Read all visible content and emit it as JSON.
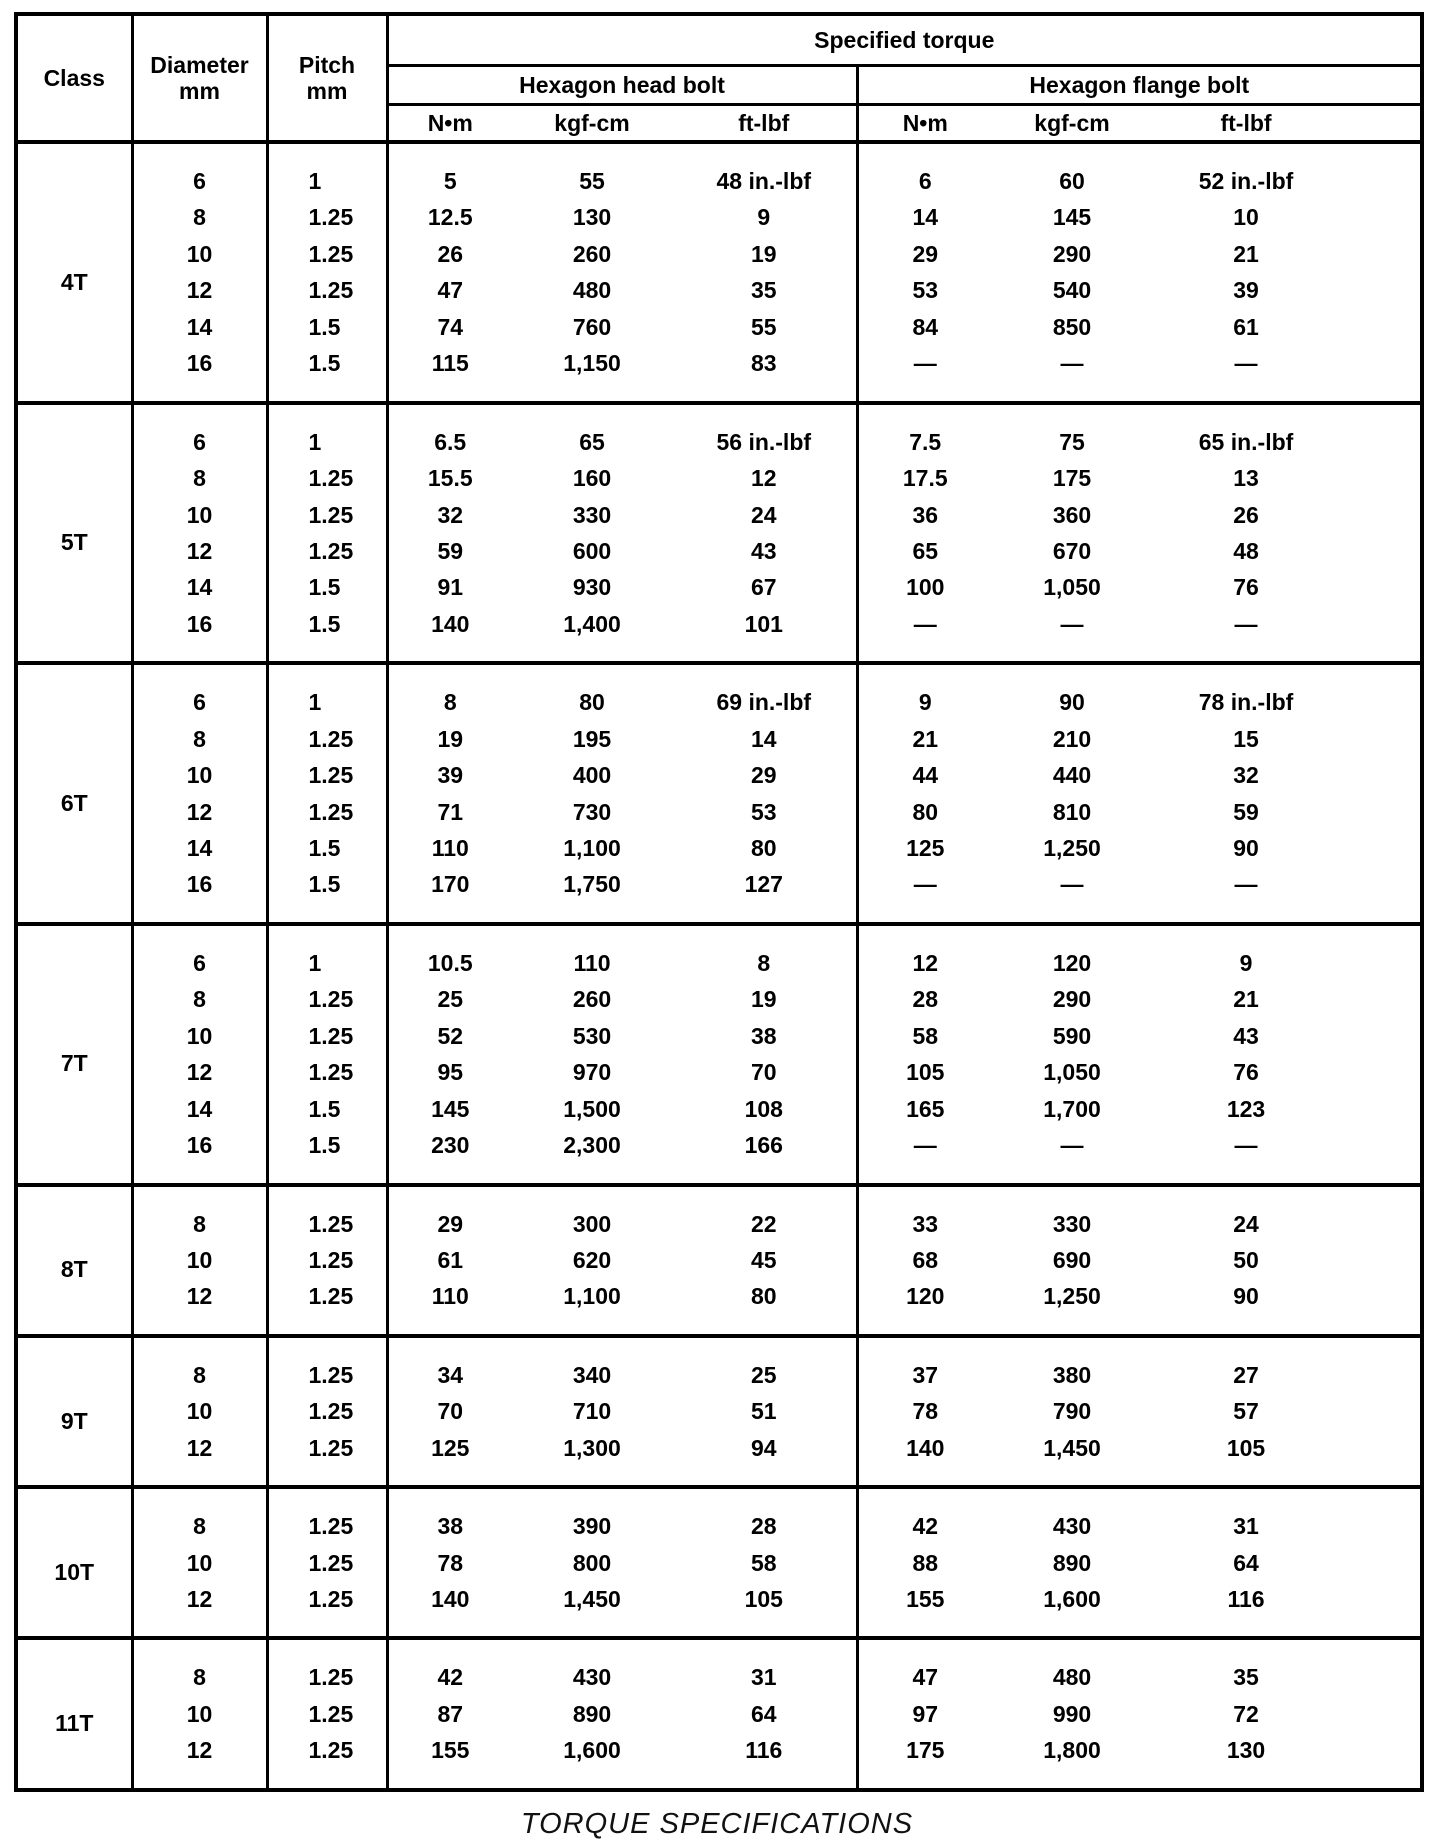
{
  "table": {
    "headers": {
      "class": "Class",
      "diameter_line1": "Diameter",
      "diameter_line2": "mm",
      "pitch_line1": "Pitch",
      "pitch_line2": "mm",
      "specified_torque": "Specified torque",
      "head_bolt": "Hexagon head bolt",
      "flange_bolt": "Hexagon flange bolt",
      "units": [
        "N•m",
        "kgf-cm",
        "ft-lbf"
      ]
    },
    "sections": [
      {
        "class": "4T",
        "rows": [
          [
            "6",
            "1",
            "5",
            "55",
            "48 in.-lbf",
            "6",
            "60",
            "52 in.-lbf"
          ],
          [
            "8",
            "1.25",
            "12.5",
            "130",
            "9",
            "14",
            "145",
            "10"
          ],
          [
            "10",
            "1.25",
            "26",
            "260",
            "19",
            "29",
            "290",
            "21"
          ],
          [
            "12",
            "1.25",
            "47",
            "480",
            "35",
            "53",
            "540",
            "39"
          ],
          [
            "14",
            "1.5",
            "74",
            "760",
            "55",
            "84",
            "850",
            "61"
          ],
          [
            "16",
            "1.5",
            "115",
            "1,150",
            "83",
            "—",
            "—",
            "—"
          ]
        ]
      },
      {
        "class": "5T",
        "rows": [
          [
            "6",
            "1",
            "6.5",
            "65",
            "56 in.-lbf",
            "7.5",
            "75",
            "65 in.-lbf"
          ],
          [
            "8",
            "1.25",
            "15.5",
            "160",
            "12",
            "17.5",
            "175",
            "13"
          ],
          [
            "10",
            "1.25",
            "32",
            "330",
            "24",
            "36",
            "360",
            "26"
          ],
          [
            "12",
            "1.25",
            "59",
            "600",
            "43",
            "65",
            "670",
            "48"
          ],
          [
            "14",
            "1.5",
            "91",
            "930",
            "67",
            "100",
            "1,050",
            "76"
          ],
          [
            "16",
            "1.5",
            "140",
            "1,400",
            "101",
            "—",
            "—",
            "—"
          ]
        ]
      },
      {
        "class": "6T",
        "rows": [
          [
            "6",
            "1",
            "8",
            "80",
            "69 in.-lbf",
            "9",
            "90",
            "78 in.-lbf"
          ],
          [
            "8",
            "1.25",
            "19",
            "195",
            "14",
            "21",
            "210",
            "15"
          ],
          [
            "10",
            "1.25",
            "39",
            "400",
            "29",
            "44",
            "440",
            "32"
          ],
          [
            "12",
            "1.25",
            "71",
            "730",
            "53",
            "80",
            "810",
            "59"
          ],
          [
            "14",
            "1.5",
            "110",
            "1,100",
            "80",
            "125",
            "1,250",
            "90"
          ],
          [
            "16",
            "1.5",
            "170",
            "1,750",
            "127",
            "—",
            "—",
            "—"
          ]
        ]
      },
      {
        "class": "7T",
        "rows": [
          [
            "6",
            "1",
            "10.5",
            "110",
            "8",
            "12",
            "120",
            "9"
          ],
          [
            "8",
            "1.25",
            "25",
            "260",
            "19",
            "28",
            "290",
            "21"
          ],
          [
            "10",
            "1.25",
            "52",
            "530",
            "38",
            "58",
            "590",
            "43"
          ],
          [
            "12",
            "1.25",
            "95",
            "970",
            "70",
            "105",
            "1,050",
            "76"
          ],
          [
            "14",
            "1.5",
            "145",
            "1,500",
            "108",
            "165",
            "1,700",
            "123"
          ],
          [
            "16",
            "1.5",
            "230",
            "2,300",
            "166",
            "—",
            "—",
            "—"
          ]
        ]
      },
      {
        "class": "8T",
        "rows": [
          [
            "8",
            "1.25",
            "29",
            "300",
            "22",
            "33",
            "330",
            "24"
          ],
          [
            "10",
            "1.25",
            "61",
            "620",
            "45",
            "68",
            "690",
            "50"
          ],
          [
            "12",
            "1.25",
            "110",
            "1,100",
            "80",
            "120",
            "1,250",
            "90"
          ]
        ]
      },
      {
        "class": "9T",
        "rows": [
          [
            "8",
            "1.25",
            "34",
            "340",
            "25",
            "37",
            "380",
            "27"
          ],
          [
            "10",
            "1.25",
            "70",
            "710",
            "51",
            "78",
            "790",
            "57"
          ],
          [
            "12",
            "1.25",
            "125",
            "1,300",
            "94",
            "140",
            "1,450",
            "105"
          ]
        ]
      },
      {
        "class": "10T",
        "rows": [
          [
            "8",
            "1.25",
            "38",
            "390",
            "28",
            "42",
            "430",
            "31"
          ],
          [
            "10",
            "1.25",
            "78",
            "800",
            "58",
            "88",
            "890",
            "64"
          ],
          [
            "12",
            "1.25",
            "140",
            "1,450",
            "105",
            "155",
            "1,600",
            "116"
          ]
        ]
      },
      {
        "class": "11T",
        "rows": [
          [
            "8",
            "1.25",
            "42",
            "430",
            "31",
            "47",
            "480",
            "35"
          ],
          [
            "10",
            "1.25",
            "87",
            "890",
            "64",
            "97",
            "990",
            "72"
          ],
          [
            "12",
            "1.25",
            "155",
            "1,600",
            "116",
            "175",
            "1,800",
            "130"
          ]
        ]
      }
    ]
  },
  "caption": "TORQUE SPECIFICATIONS"
}
